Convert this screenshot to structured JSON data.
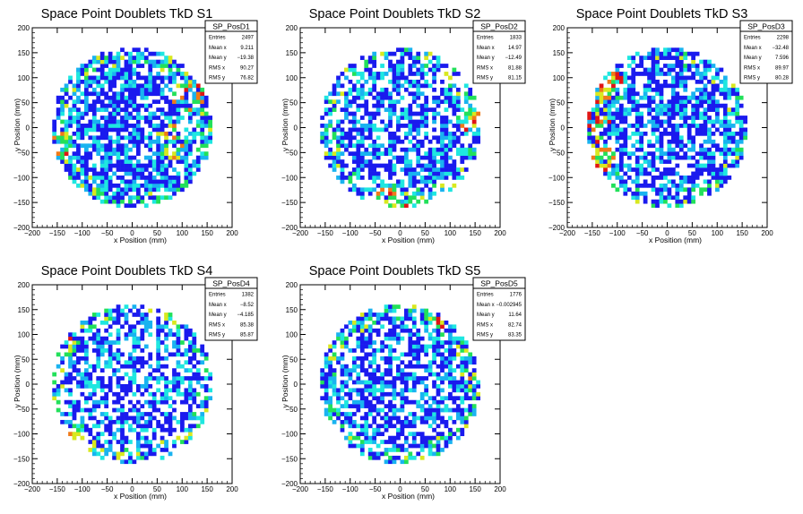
{
  "chart_data": [
    {
      "type": "heatmap",
      "title": "Space Point Doublets TkD S1",
      "xlabel": "x Position (mm)",
      "ylabel": "y Position (mm)",
      "xlim": [
        -200,
        200
      ],
      "ylim": [
        -200,
        200
      ],
      "xticks": [
        "−200",
        "−150",
        "−100",
        "−50",
        "0",
        "50",
        "100",
        "150",
        "200"
      ],
      "yticks": [
        "−200",
        "−150",
        "−100",
        "−50",
        "0",
        "50",
        "100",
        "150",
        "200"
      ],
      "stats": {
        "name": "SP_PosD1",
        "rows": [
          {
            "label": "Entries",
            "value": "2497"
          },
          {
            "label": "Mean x",
            "value": "9.211"
          },
          {
            "label": "Mean y",
            "value": "−19.38"
          },
          {
            "label": "RMS x",
            "value": "90.27"
          },
          {
            "label": "RMS y",
            "value": "76.82"
          }
        ]
      },
      "disk_radius_mm": 160,
      "bin_size_mm": 8,
      "seed": 11,
      "fill_prob": 0.72,
      "hotspots": [
        [
          -150,
          -40
        ],
        [
          80,
          -30
        ],
        [
          110,
          70
        ]
      ]
    },
    {
      "type": "heatmap",
      "title": "Space Point Doublets TkD S2",
      "xlabel": "x Position (mm)",
      "ylabel": "y Position (mm)",
      "xlim": [
        -200,
        200
      ],
      "ylim": [
        -200,
        200
      ],
      "xticks": [
        "−200",
        "−150",
        "−100",
        "−50",
        "0",
        "50",
        "100",
        "150",
        "200"
      ],
      "yticks": [
        "−200",
        "−150",
        "−100",
        "−50",
        "0",
        "50",
        "100",
        "150",
        "200"
      ],
      "stats": {
        "name": "SP_PosD2",
        "rows": [
          {
            "label": "Entries",
            "value": "1833"
          },
          {
            "label": "Mean x",
            "value": "14.97"
          },
          {
            "label": "Mean y",
            "value": "−12.49"
          },
          {
            "label": "RMS x",
            "value": "81.88"
          },
          {
            "label": "RMS y",
            "value": "81.15"
          }
        ]
      },
      "disk_radius_mm": 160,
      "bin_size_mm": 8,
      "seed": 23,
      "fill_prob": 0.6,
      "hotspots": [
        [
          150,
          20
        ],
        [
          -20,
          -150
        ]
      ]
    },
    {
      "type": "heatmap",
      "title": "Space Point Doublets TkD S3",
      "xlabel": "x Position (mm)",
      "ylabel": "y Position (mm)",
      "xlim": [
        -200,
        200
      ],
      "ylim": [
        -200,
        200
      ],
      "xticks": [
        "−200",
        "−150",
        "−100",
        "−50",
        "0",
        "50",
        "100",
        "150",
        "200"
      ],
      "yticks": [
        "−200",
        "−150",
        "−100",
        "−50",
        "0",
        "50",
        "100",
        "150",
        "200"
      ],
      "stats": {
        "name": "SP_PosD3",
        "rows": [
          {
            "label": "Entries",
            "value": "2298"
          },
          {
            "label": "Mean x",
            "value": "−32.48"
          },
          {
            "label": "Mean y",
            "value": "7.596"
          },
          {
            "label": "RMS x",
            "value": "89.97"
          },
          {
            "label": "RMS y",
            "value": "80.28"
          }
        ]
      },
      "disk_radius_mm": 160,
      "bin_size_mm": 8,
      "seed": 37,
      "fill_prob": 0.66,
      "hotspots": [
        [
          -150,
          20
        ],
        [
          -140,
          -60
        ],
        [
          -120,
          80
        ]
      ]
    },
    {
      "type": "heatmap",
      "title": "Space Point Doublets TkD S4",
      "xlabel": "x Position (mm)",
      "ylabel": "y Position (mm)",
      "xlim": [
        -200,
        200
      ],
      "ylim": [
        -200,
        200
      ],
      "xticks": [
        "−200",
        "−150",
        "−100",
        "−50",
        "0",
        "50",
        "100",
        "150",
        "200"
      ],
      "yticks": [
        "−200",
        "−150",
        "−100",
        "−50",
        "0",
        "50",
        "100",
        "150",
        "200"
      ],
      "stats": {
        "name": "SP_PosD4",
        "rows": [
          {
            "label": "Entries",
            "value": "1382"
          },
          {
            "label": "Mean x",
            "value": "−8.52"
          },
          {
            "label": "Mean y",
            "value": "−4.185"
          },
          {
            "label": "RMS x",
            "value": "85.38"
          },
          {
            "label": "RMS y",
            "value": "85.87"
          }
        ]
      },
      "disk_radius_mm": 160,
      "bin_size_mm": 8,
      "seed": 41,
      "fill_prob": 0.55,
      "hotspots": [
        [
          -150,
          80
        ],
        [
          -110,
          -130
        ]
      ]
    },
    {
      "type": "heatmap",
      "title": "Space Point Doublets TkD S5",
      "xlabel": "x Position (mm)",
      "ylabel": "y Position (mm)",
      "xlim": [
        -200,
        200
      ],
      "ylim": [
        -200,
        200
      ],
      "xticks": [
        "−200",
        "−150",
        "−100",
        "−50",
        "0",
        "50",
        "100",
        "150",
        "200"
      ],
      "yticks": [
        "−200",
        "−150",
        "−100",
        "−50",
        "0",
        "50",
        "100",
        "150",
        "200"
      ],
      "stats": {
        "name": "SP_PosD5",
        "rows": [
          {
            "label": "Entries",
            "value": "1776"
          },
          {
            "label": "Mean x",
            "value": "−0.002945"
          },
          {
            "label": "Mean y",
            "value": "11.64"
          },
          {
            "label": "RMS x",
            "value": "82.74"
          },
          {
            "label": "RMS y",
            "value": "83.35"
          }
        ]
      },
      "disk_radius_mm": 160,
      "bin_size_mm": 8,
      "seed": 53,
      "fill_prob": 0.62,
      "hotspots": [
        [
          150,
          40
        ],
        [
          80,
          140
        ]
      ]
    }
  ],
  "palette": {
    "low": "#1a1aee",
    "mid": "#19b3f0",
    "cyan": "#1ee7e0",
    "green": "#22e05a",
    "yellow": "#d8e81f",
    "orange": "#f07a18",
    "red": "#e01515"
  }
}
